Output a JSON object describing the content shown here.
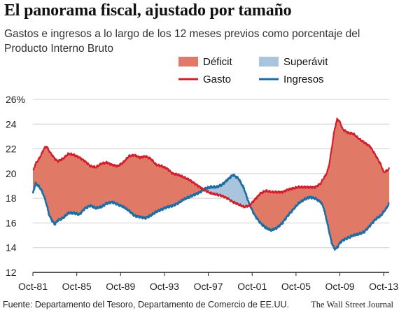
{
  "title": "El panorama fiscal, ajustado por tamaño",
  "subtitle": "Gastos e ingresos a lo largo de los 12 meses previos como porcentaje del Producto Interno Bruto",
  "source": "Fuente: Departamento del Tesoro, Departamento de Comercio de EE.UU.",
  "credit": "The Wall Street Journal",
  "colors": {
    "deficit": "#e07a66",
    "surplus": "#a9c4dd",
    "gasto": "#d0202e",
    "ingresos": "#1e6ea3",
    "grid": "#d0d0d0",
    "axis": "#222222"
  },
  "chart_data": {
    "type": "area",
    "title": "El panorama fiscal, ajustado por tamaño",
    "subtitle": "Gastos e ingresos a lo largo de los 12 meses previos como porcentaje del Producto Interno Bruto",
    "ylabel": "",
    "y_unit": "%",
    "ylim": [
      12,
      26
    ],
    "yticks": [
      12,
      14,
      16,
      18,
      20,
      22,
      24,
      26
    ],
    "ytick_labels": [
      "12",
      "14",
      "16",
      "18",
      "20",
      "22",
      "24",
      "26%"
    ],
    "xlim": [
      1981.75,
      2014.25
    ],
    "xticks": [
      1981.75,
      1985.75,
      1989.75,
      1993.75,
      1997.75,
      2001.75,
      2005.75,
      2009.75,
      2013.75
    ],
    "xtick_labels": [
      "Oct-81",
      "Oct-85",
      "Oct-89",
      "Oct-93",
      "Oct-97",
      "Oct-01",
      "Oct-05",
      "Oct-09",
      "Oct-13"
    ],
    "grid": true,
    "legend_position": "top-right",
    "legend": [
      {
        "label": "Déficit",
        "kind": "fill",
        "color_key": "deficit"
      },
      {
        "label": "Superávit",
        "kind": "fill",
        "color_key": "surplus"
      },
      {
        "label": "Gasto",
        "kind": "line",
        "color_key": "gasto"
      },
      {
        "label": "Ingresos",
        "kind": "line",
        "color_key": "ingresos"
      }
    ],
    "series": [
      {
        "name": "Gasto",
        "x": [
          1981.75,
          1982.0,
          1982.25,
          1982.5,
          1982.75,
          1983.0,
          1983.25,
          1983.5,
          1983.75,
          1984.0,
          1984.5,
          1985.0,
          1985.5,
          1986.0,
          1986.5,
          1987.0,
          1987.5,
          1988.0,
          1988.5,
          1989.0,
          1989.5,
          1990.0,
          1990.5,
          1991.0,
          1991.5,
          1992.0,
          1992.5,
          1993.0,
          1993.5,
          1994.0,
          1994.5,
          1995.0,
          1995.5,
          1996.0,
          1996.5,
          1997.0,
          1997.5,
          1998.0,
          1998.5,
          1999.0,
          1999.5,
          2000.0,
          2000.5,
          2001.0,
          2001.5,
          2002.0,
          2002.5,
          2003.0,
          2003.5,
          2004.0,
          2004.5,
          2005.0,
          2005.5,
          2006.0,
          2006.5,
          2007.0,
          2007.5,
          2008.0,
          2008.25,
          2008.5,
          2008.75,
          2009.0,
          2009.25,
          2009.5,
          2009.75,
          2010.0,
          2010.5,
          2011.0,
          2011.5,
          2012.0,
          2012.5,
          2013.0,
          2013.5,
          2013.75,
          2014.0,
          2014.25
        ],
        "values": [
          20.2,
          20.8,
          21.1,
          21.5,
          22.0,
          22.2,
          21.8,
          21.5,
          21.2,
          21.0,
          21.2,
          21.6,
          21.5,
          21.3,
          21.0,
          20.6,
          20.5,
          20.8,
          20.9,
          20.7,
          20.6,
          20.9,
          21.4,
          21.5,
          21.3,
          21.4,
          21.2,
          20.7,
          20.6,
          20.4,
          20.0,
          19.9,
          19.7,
          19.5,
          19.2,
          18.9,
          18.6,
          18.4,
          18.3,
          18.2,
          18.0,
          17.7,
          17.5,
          17.3,
          17.4,
          17.9,
          18.4,
          18.6,
          18.5,
          18.5,
          18.5,
          18.7,
          18.8,
          18.9,
          18.9,
          18.9,
          18.9,
          19.2,
          19.6,
          19.9,
          20.6,
          22.0,
          23.5,
          24.4,
          24.2,
          23.6,
          23.3,
          23.2,
          22.8,
          22.5,
          22.2,
          21.5,
          20.7,
          20.1,
          20.2,
          20.4
        ]
      },
      {
        "name": "Ingresos",
        "x": [
          1981.75,
          1982.0,
          1982.25,
          1982.5,
          1982.75,
          1983.0,
          1983.25,
          1983.5,
          1983.75,
          1984.0,
          1984.5,
          1985.0,
          1985.5,
          1986.0,
          1986.5,
          1987.0,
          1987.5,
          1988.0,
          1988.5,
          1989.0,
          1989.5,
          1990.0,
          1990.5,
          1991.0,
          1991.5,
          1992.0,
          1992.5,
          1993.0,
          1993.5,
          1994.0,
          1994.5,
          1995.0,
          1995.5,
          1996.0,
          1996.5,
          1997.0,
          1997.5,
          1998.0,
          1998.5,
          1999.0,
          1999.5,
          2000.0,
          2000.5,
          2001.0,
          2001.5,
          2002.0,
          2002.5,
          2003.0,
          2003.5,
          2004.0,
          2004.5,
          2005.0,
          2005.5,
          2006.0,
          2006.5,
          2007.0,
          2007.5,
          2008.0,
          2008.25,
          2008.5,
          2008.75,
          2009.0,
          2009.25,
          2009.5,
          2009.75,
          2010.0,
          2010.5,
          2011.0,
          2011.5,
          2012.0,
          2012.5,
          2013.0,
          2013.5,
          2013.75,
          2014.0,
          2014.25
        ],
        "values": [
          18.4,
          19.2,
          19.0,
          18.7,
          18.2,
          17.5,
          16.6,
          16.2,
          15.9,
          16.2,
          16.4,
          16.8,
          16.8,
          16.7,
          17.2,
          17.4,
          17.2,
          17.3,
          17.6,
          17.7,
          17.5,
          17.3,
          17.0,
          16.6,
          16.5,
          16.4,
          16.6,
          16.9,
          17.1,
          17.3,
          17.4,
          17.6,
          17.9,
          18.1,
          18.3,
          18.5,
          18.8,
          18.9,
          18.9,
          19.1,
          19.5,
          19.9,
          19.6,
          18.8,
          17.5,
          16.6,
          16.0,
          15.6,
          15.4,
          15.6,
          16.0,
          16.6,
          17.1,
          17.6,
          17.9,
          18.1,
          18.0,
          17.7,
          17.3,
          16.4,
          15.4,
          14.4,
          13.9,
          14.0,
          14.4,
          14.6,
          14.8,
          15.0,
          15.1,
          15.3,
          15.8,
          16.3,
          16.6,
          16.9,
          17.2,
          17.6
        ]
      }
    ]
  }
}
